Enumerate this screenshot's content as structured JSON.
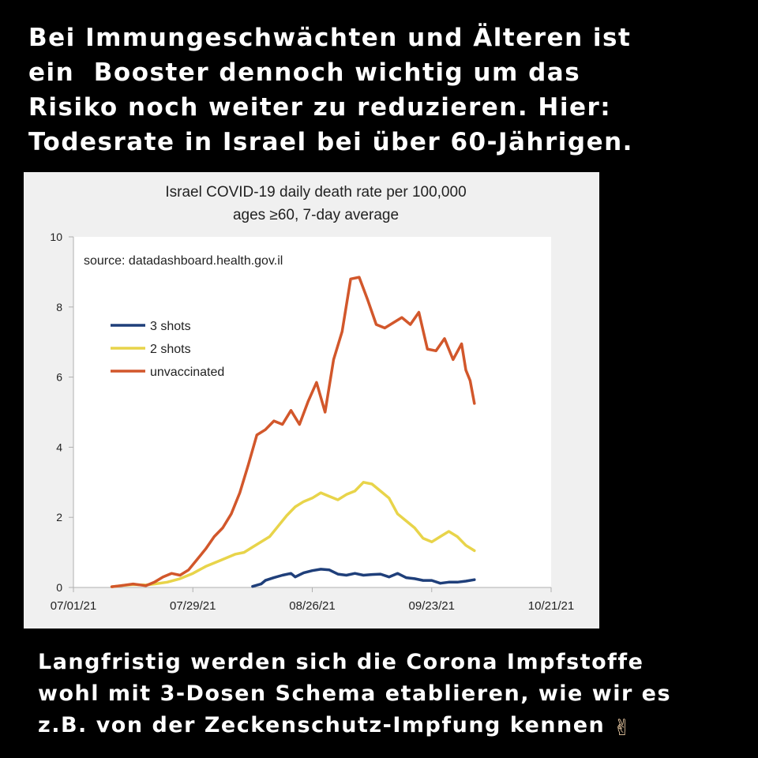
{
  "headline": {
    "lines": [
      "Bei Immungeschwächten und Älteren ist",
      "ein  Booster dennoch wichtig um das",
      "Risiko noch weiter zu reduzieren. Hier:",
      "Todesrate in Israel bei über 60-Jährigen."
    ]
  },
  "footer": {
    "lines": [
      "Langfristig werden sich die Corona Impfstoffe",
      "wohl mit 3-Dosen Schema etablieren, wie wir es",
      "z.B. von der Zeckenschutz-Impfung kennen"
    ],
    "emoji": "✌",
    "emoji_name": "victory-hand-icon"
  },
  "chart_data": {
    "type": "line",
    "title": "Israel COVID-19 daily death rate per 100,000",
    "subtitle": "ages ≥60, 7-day average",
    "source": "source: datadashboard.health.gov.il",
    "ylim": [
      0,
      10
    ],
    "yticks": [
      "0",
      "2",
      "4",
      "6",
      "8",
      "10"
    ],
    "xticks": [
      "07/01/21",
      "07/29/21",
      "08/26/21",
      "09/23/21",
      "10/21/21"
    ],
    "xlim": [
      "07/01/21",
      "10/21/21"
    ],
    "grid": false,
    "legend_position": "upper-left",
    "series": [
      {
        "name": "3 shots",
        "color": "#1f3f7a",
        "points": [
          [
            "08/12/21",
            0.03
          ],
          [
            "08/14/21",
            0.1
          ],
          [
            "08/15/21",
            0.2
          ],
          [
            "08/17/21",
            0.28
          ],
          [
            "08/19/21",
            0.35
          ],
          [
            "08/21/21",
            0.4
          ],
          [
            "08/22/21",
            0.3
          ],
          [
            "08/24/21",
            0.42
          ],
          [
            "08/26/21",
            0.48
          ],
          [
            "08/28/21",
            0.52
          ],
          [
            "08/30/21",
            0.5
          ],
          [
            "09/01/21",
            0.38
          ],
          [
            "09/03/21",
            0.35
          ],
          [
            "09/05/21",
            0.4
          ],
          [
            "09/07/21",
            0.35
          ],
          [
            "09/09/21",
            0.37
          ],
          [
            "09/11/21",
            0.38
          ],
          [
            "09/13/21",
            0.3
          ],
          [
            "09/15/21",
            0.4
          ],
          [
            "09/17/21",
            0.28
          ],
          [
            "09/19/21",
            0.25
          ],
          [
            "09/21/21",
            0.2
          ],
          [
            "09/23/21",
            0.2
          ],
          [
            "09/25/21",
            0.12
          ],
          [
            "09/27/21",
            0.15
          ],
          [
            "09/29/21",
            0.15
          ],
          [
            "10/01/21",
            0.18
          ],
          [
            "10/03/21",
            0.22
          ]
        ]
      },
      {
        "name": "2 shots",
        "color": "#e8d44a",
        "points": [
          [
            "07/10/21",
            0.02
          ],
          [
            "07/12/21",
            0.05
          ],
          [
            "07/15/21",
            0.08
          ],
          [
            "07/18/21",
            0.07
          ],
          [
            "07/20/21",
            0.1
          ],
          [
            "07/23/21",
            0.15
          ],
          [
            "07/26/21",
            0.25
          ],
          [
            "07/29/21",
            0.4
          ],
          [
            "08/01/21",
            0.6
          ],
          [
            "08/04/21",
            0.75
          ],
          [
            "08/06/21",
            0.85
          ],
          [
            "08/08/21",
            0.95
          ],
          [
            "08/10/21",
            1.0
          ],
          [
            "08/12/21",
            1.15
          ],
          [
            "08/14/21",
            1.3
          ],
          [
            "08/16/21",
            1.45
          ],
          [
            "08/18/21",
            1.75
          ],
          [
            "08/20/21",
            2.05
          ],
          [
            "08/22/21",
            2.3
          ],
          [
            "08/24/21",
            2.45
          ],
          [
            "08/26/21",
            2.55
          ],
          [
            "08/28/21",
            2.7
          ],
          [
            "08/30/21",
            2.6
          ],
          [
            "09/01/21",
            2.5
          ],
          [
            "09/03/21",
            2.65
          ],
          [
            "09/05/21",
            2.75
          ],
          [
            "09/07/21",
            3.0
          ],
          [
            "09/09/21",
            2.95
          ],
          [
            "09/11/21",
            2.75
          ],
          [
            "09/13/21",
            2.55
          ],
          [
            "09/15/21",
            2.1
          ],
          [
            "09/17/21",
            1.9
          ],
          [
            "09/19/21",
            1.7
          ],
          [
            "09/21/21",
            1.4
          ],
          [
            "09/23/21",
            1.3
          ],
          [
            "09/25/21",
            1.45
          ],
          [
            "09/27/21",
            1.6
          ],
          [
            "09/29/21",
            1.45
          ],
          [
            "10/01/21",
            1.2
          ],
          [
            "10/03/21",
            1.05
          ]
        ]
      },
      {
        "name": "unvaccinated",
        "color": "#d2572b",
        "points": [
          [
            "07/10/21",
            0.02
          ],
          [
            "07/12/21",
            0.05
          ],
          [
            "07/15/21",
            0.1
          ],
          [
            "07/18/21",
            0.05
          ],
          [
            "07/20/21",
            0.15
          ],
          [
            "07/22/21",
            0.3
          ],
          [
            "07/24/21",
            0.4
          ],
          [
            "07/26/21",
            0.35
          ],
          [
            "07/28/21",
            0.5
          ],
          [
            "07/30/21",
            0.8
          ],
          [
            "08/01/21",
            1.1
          ],
          [
            "08/03/21",
            1.45
          ],
          [
            "08/05/21",
            1.7
          ],
          [
            "08/07/21",
            2.1
          ],
          [
            "08/09/21",
            2.7
          ],
          [
            "08/11/21",
            3.5
          ],
          [
            "08/13/21",
            4.35
          ],
          [
            "08/15/21",
            4.5
          ],
          [
            "08/17/21",
            4.75
          ],
          [
            "08/19/21",
            4.65
          ],
          [
            "08/21/21",
            5.05
          ],
          [
            "08/23/21",
            4.65
          ],
          [
            "08/25/21",
            5.3
          ],
          [
            "08/27/21",
            5.85
          ],
          [
            "08/29/21",
            5.0
          ],
          [
            "08/31/21",
            6.5
          ],
          [
            "09/02/21",
            7.3
          ],
          [
            "09/04/21",
            8.8
          ],
          [
            "09/06/21",
            8.85
          ],
          [
            "09/08/21",
            8.2
          ],
          [
            "09/10/21",
            7.5
          ],
          [
            "09/12/21",
            7.4
          ],
          [
            "09/14/21",
            7.55
          ],
          [
            "09/16/21",
            7.7
          ],
          [
            "09/18/21",
            7.5
          ],
          [
            "09/20/21",
            7.85
          ],
          [
            "09/22/21",
            6.8
          ],
          [
            "09/24/21",
            6.75
          ],
          [
            "09/26/21",
            7.1
          ],
          [
            "09/28/21",
            6.5
          ],
          [
            "09/30/21",
            6.95
          ],
          [
            "10/01/21",
            6.2
          ],
          [
            "10/02/21",
            5.9
          ],
          [
            "10/03/21",
            5.25
          ]
        ]
      }
    ]
  }
}
